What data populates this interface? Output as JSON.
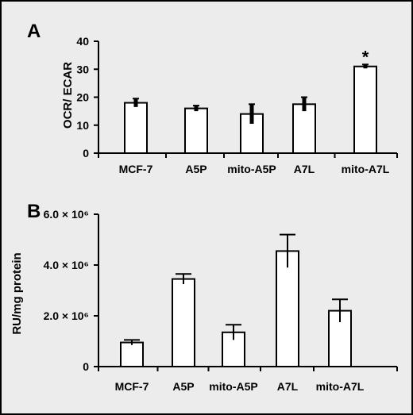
{
  "chart_data": [
    {
      "panel": "A",
      "type": "bar",
      "ylabel": "OCR/ ECAR",
      "xlabel": "",
      "ylim": [
        0,
        40
      ],
      "yticks": [
        "0",
        "10",
        "20",
        "30",
        "40"
      ],
      "categories": [
        "MCF-7",
        "A5P",
        "mito-A5P",
        "A7L",
        "mito-A7L"
      ],
      "values": [
        18,
        16,
        14,
        17.5,
        31
      ],
      "errors": [
        1.5,
        1,
        3.5,
        2.5,
        0.7
      ],
      "annotations": [
        {
          "category": "mito-A7L",
          "text": "*"
        }
      ]
    },
    {
      "panel": "B",
      "type": "bar",
      "ylabel": "RU/mg protein",
      "xlabel": "",
      "ylim": [
        0,
        6000000
      ],
      "yticks": [
        "0",
        "2.0 × 10⁶",
        "4.0 × 10⁶",
        "6.0 × 10⁶"
      ],
      "categories": [
        "MCF-7",
        "A5P",
        "mito-A5P",
        "A7L",
        "mito-A7L"
      ],
      "values": [
        950000,
        3450000,
        1350000,
        4550000,
        2200000
      ],
      "errors": [
        100000,
        200000,
        300000,
        650000,
        450000
      ],
      "annotations": []
    }
  ]
}
